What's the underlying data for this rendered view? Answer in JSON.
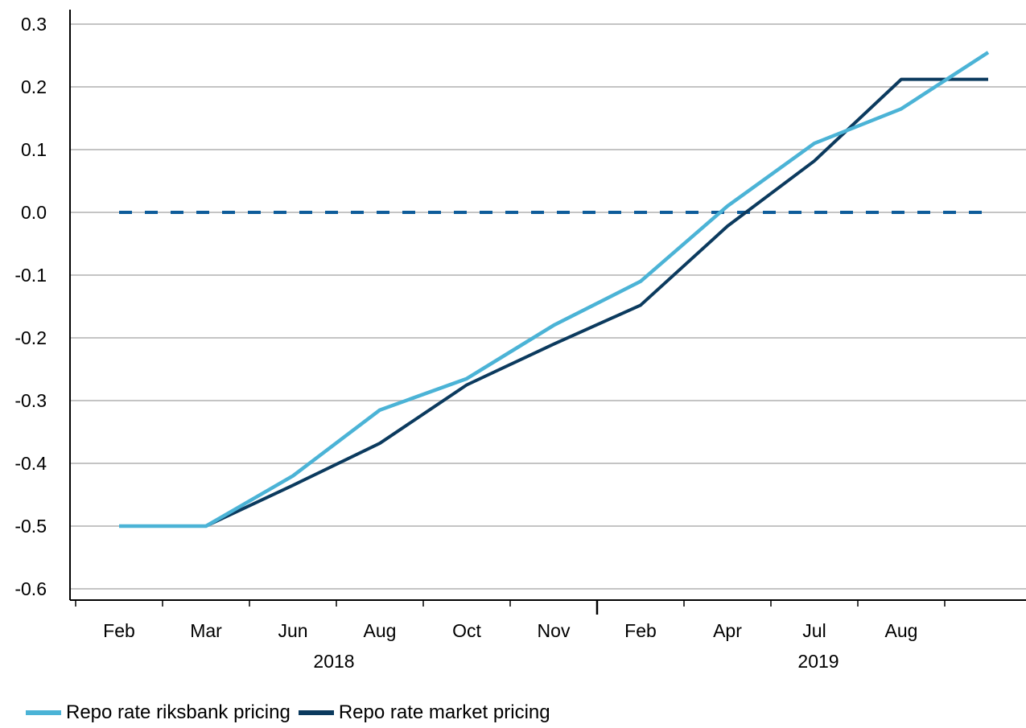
{
  "chart_data": {
    "type": "line",
    "title": "",
    "xlabel": "",
    "ylabel": "",
    "ylim": [
      -0.6,
      0.3
    ],
    "yticks": [
      "0.3",
      "0.2",
      "0.1",
      "0.0",
      "-0.1",
      "-0.2",
      "-0.3",
      "-0.4",
      "-0.5",
      "-0.6"
    ],
    "grid": "horizontal",
    "x_tick_labels": [
      "Feb",
      "Mar",
      "Jun",
      "Aug",
      "Oct",
      "Nov",
      "Feb",
      "Apr",
      "Jul",
      "Aug"
    ],
    "year_labels": [
      "2018",
      "2019"
    ],
    "legend_position": "bottom-left",
    "series": [
      {
        "name": "Repo rate riksbank pricing",
        "color": "#4bb3d6",
        "x": [
          0,
          1,
          2,
          3,
          4,
          5,
          6,
          7,
          8,
          9,
          10
        ],
        "values": [
          -0.5,
          -0.5,
          -0.42,
          -0.315,
          -0.265,
          -0.18,
          -0.11,
          0.01,
          0.11,
          0.165,
          0.255
        ]
      },
      {
        "name": "Repo rate market pricing",
        "color": "#0b3a5e",
        "x": [
          0,
          1,
          2,
          3,
          4,
          5,
          6,
          7,
          8,
          9,
          10
        ],
        "values": [
          -0.5,
          -0.5,
          -0.435,
          -0.368,
          -0.275,
          -0.21,
          -0.148,
          -0.022,
          0.082,
          0.212,
          0.212
        ]
      }
    ],
    "reference_line": {
      "value": 0.0,
      "style": "dashed",
      "color": "#0e5c9a",
      "x_range": [
        0,
        10
      ]
    }
  }
}
